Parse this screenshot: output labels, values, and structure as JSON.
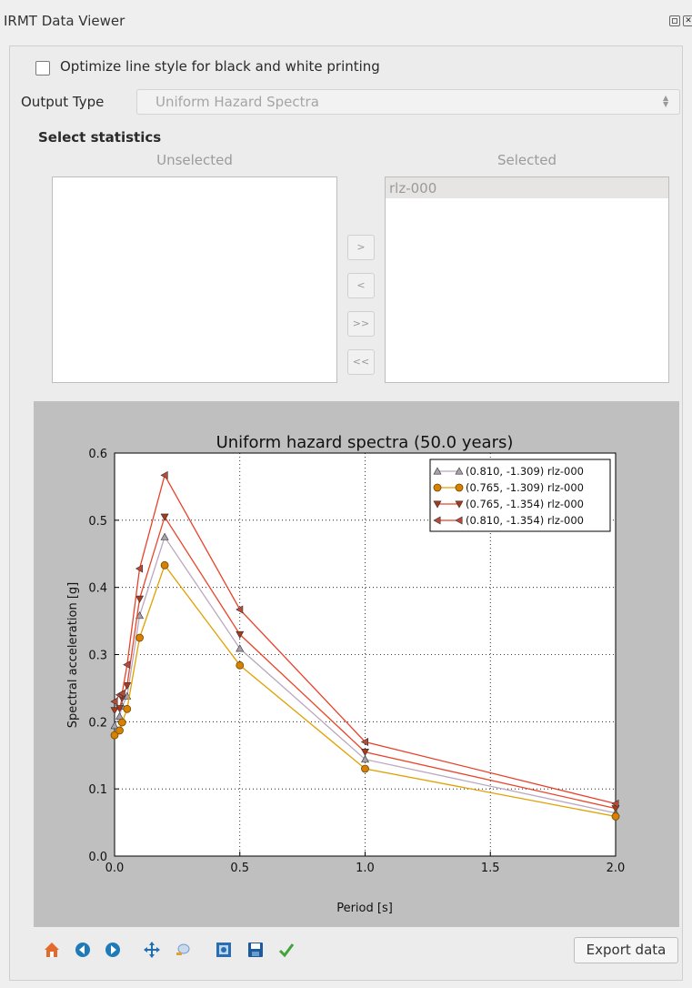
{
  "window": {
    "title": "IRMT Data Viewer"
  },
  "bw_option": {
    "label": "Optimize line style for black and white printing",
    "checked": false
  },
  "output": {
    "label": "Output Type",
    "value": "Uniform Hazard Spectra"
  },
  "statistics": {
    "title": "Select statistics",
    "unselected_label": "Unselected",
    "selected_label": "Selected",
    "unselected_items": [],
    "selected_items": [
      "rlz-000"
    ],
    "buttons": {
      "add": ">",
      "remove": "<",
      "add_all": ">>",
      "remove_all": "<<"
    }
  },
  "toolbar": {
    "icons": [
      "home-icon",
      "back-icon",
      "forward-icon",
      "pan-icon",
      "zoom-icon",
      "configure-subplots-icon",
      "save-icon",
      "edit-axis-icon"
    ],
    "export_label": "Export data"
  },
  "colors": {
    "plot_background": "#bfbfbf",
    "series_1": "#b8a8bf",
    "series_2": "#e0a000",
    "series_3": "#e8462a",
    "series_4": "#e8412a"
  },
  "chart_data": {
    "type": "line",
    "title": "Uniform hazard spectra (50.0 years)",
    "xlabel": "Period [s]",
    "ylabel": "Spectral acceleration [g]",
    "xlim": [
      0.0,
      2.0
    ],
    "ylim": [
      0.0,
      0.6
    ],
    "xticks": [
      "0.0",
      "0.5",
      "1.0",
      "1.5",
      "2.0"
    ],
    "yticks": [
      "0.0",
      "0.1",
      "0.2",
      "0.3",
      "0.4",
      "0.5",
      "0.6"
    ],
    "grid": true,
    "legend_position": "top-right",
    "series": [
      {
        "name": "(0.810, -1.309) rlz-000",
        "marker": "triangle-up",
        "color": "#b8a8bf",
        "marker_fill": "#a8a0aa",
        "x": [
          0.0,
          0.02,
          0.03,
          0.05,
          0.1,
          0.2,
          0.5,
          1.0,
          2.0
        ],
        "y": [
          0.194,
          0.208,
          0.223,
          0.238,
          0.358,
          0.475,
          0.309,
          0.144,
          0.064
        ]
      },
      {
        "name": "(0.765, -1.309) rlz-000",
        "marker": "circle",
        "color": "#e0a000",
        "marker_fill": "#d98000",
        "x": [
          0.0,
          0.02,
          0.03,
          0.05,
          0.1,
          0.2,
          0.5,
          1.0,
          2.0
        ],
        "y": [
          0.18,
          0.187,
          0.199,
          0.219,
          0.325,
          0.433,
          0.284,
          0.13,
          0.059
        ]
      },
      {
        "name": "(0.765, -1.354) rlz-000",
        "marker": "triangle-down",
        "color": "#e8462a",
        "marker_fill": "#a63a1a",
        "x": [
          0.0,
          0.02,
          0.03,
          0.05,
          0.1,
          0.2,
          0.5,
          1.0,
          2.0
        ],
        "y": [
          0.217,
          0.22,
          0.235,
          0.254,
          0.383,
          0.505,
          0.33,
          0.155,
          0.071
        ]
      },
      {
        "name": "(0.810, -1.354) rlz-000",
        "marker": "triangle-left",
        "color": "#e8412a",
        "marker_fill": "#b94a3a",
        "x": [
          0.0,
          0.02,
          0.03,
          0.05,
          0.1,
          0.2,
          0.5,
          1.0,
          2.0
        ],
        "y": [
          0.23,
          0.24,
          0.242,
          0.285,
          0.428,
          0.567,
          0.367,
          0.17,
          0.078
        ]
      }
    ]
  }
}
